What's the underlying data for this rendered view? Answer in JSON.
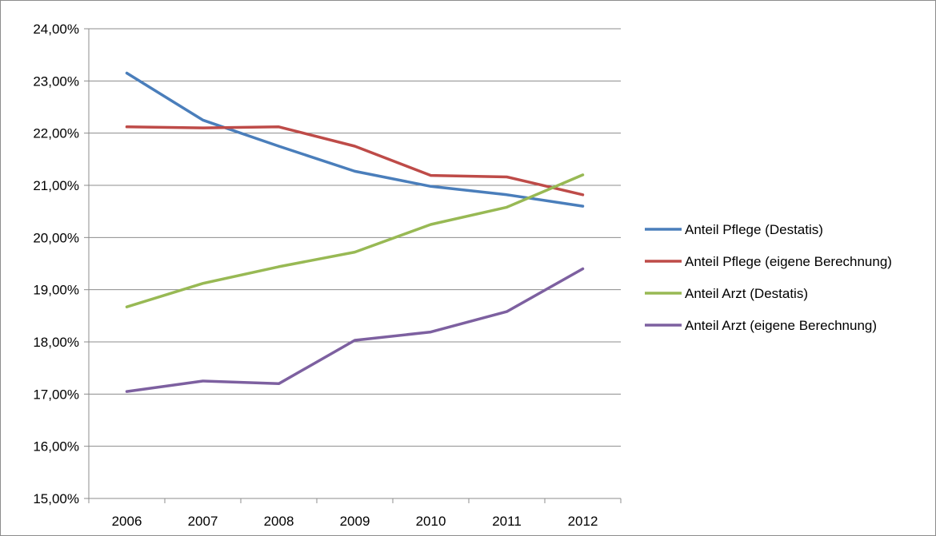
{
  "chart_data": {
    "type": "line",
    "title": "",
    "xlabel": "",
    "ylabel": "",
    "categories": [
      "2006",
      "2007",
      "2008",
      "2009",
      "2010",
      "2011",
      "2012"
    ],
    "ylim": [
      15,
      24
    ],
    "yticks": [
      "15,00%",
      "16,00%",
      "17,00%",
      "18,00%",
      "19,00%",
      "20,00%",
      "21,00%",
      "22,00%",
      "23,00%",
      "24,00%"
    ],
    "grid": true,
    "legend_position": "right",
    "series": [
      {
        "name": "Anteil Pflege (Destatis)",
        "color": "#4a7ebb",
        "values": [
          23.15,
          22.25,
          21.75,
          21.27,
          20.98,
          20.82,
          20.6
        ]
      },
      {
        "name": "Anteil Pflege (eigene Berechnung)",
        "color": "#be4b48",
        "values": [
          22.12,
          22.1,
          22.12,
          21.75,
          21.19,
          21.16,
          20.82
        ]
      },
      {
        "name": "Anteil Arzt (Destatis)",
        "color": "#98b954",
        "values": [
          18.67,
          19.12,
          19.44,
          19.72,
          20.25,
          20.58,
          21.2
        ]
      },
      {
        "name": "Anteil Arzt (eigene Berechnung)",
        "color": "#7d60a0",
        "values": [
          17.05,
          17.25,
          17.2,
          18.03,
          18.19,
          18.58,
          19.4
        ]
      }
    ]
  }
}
